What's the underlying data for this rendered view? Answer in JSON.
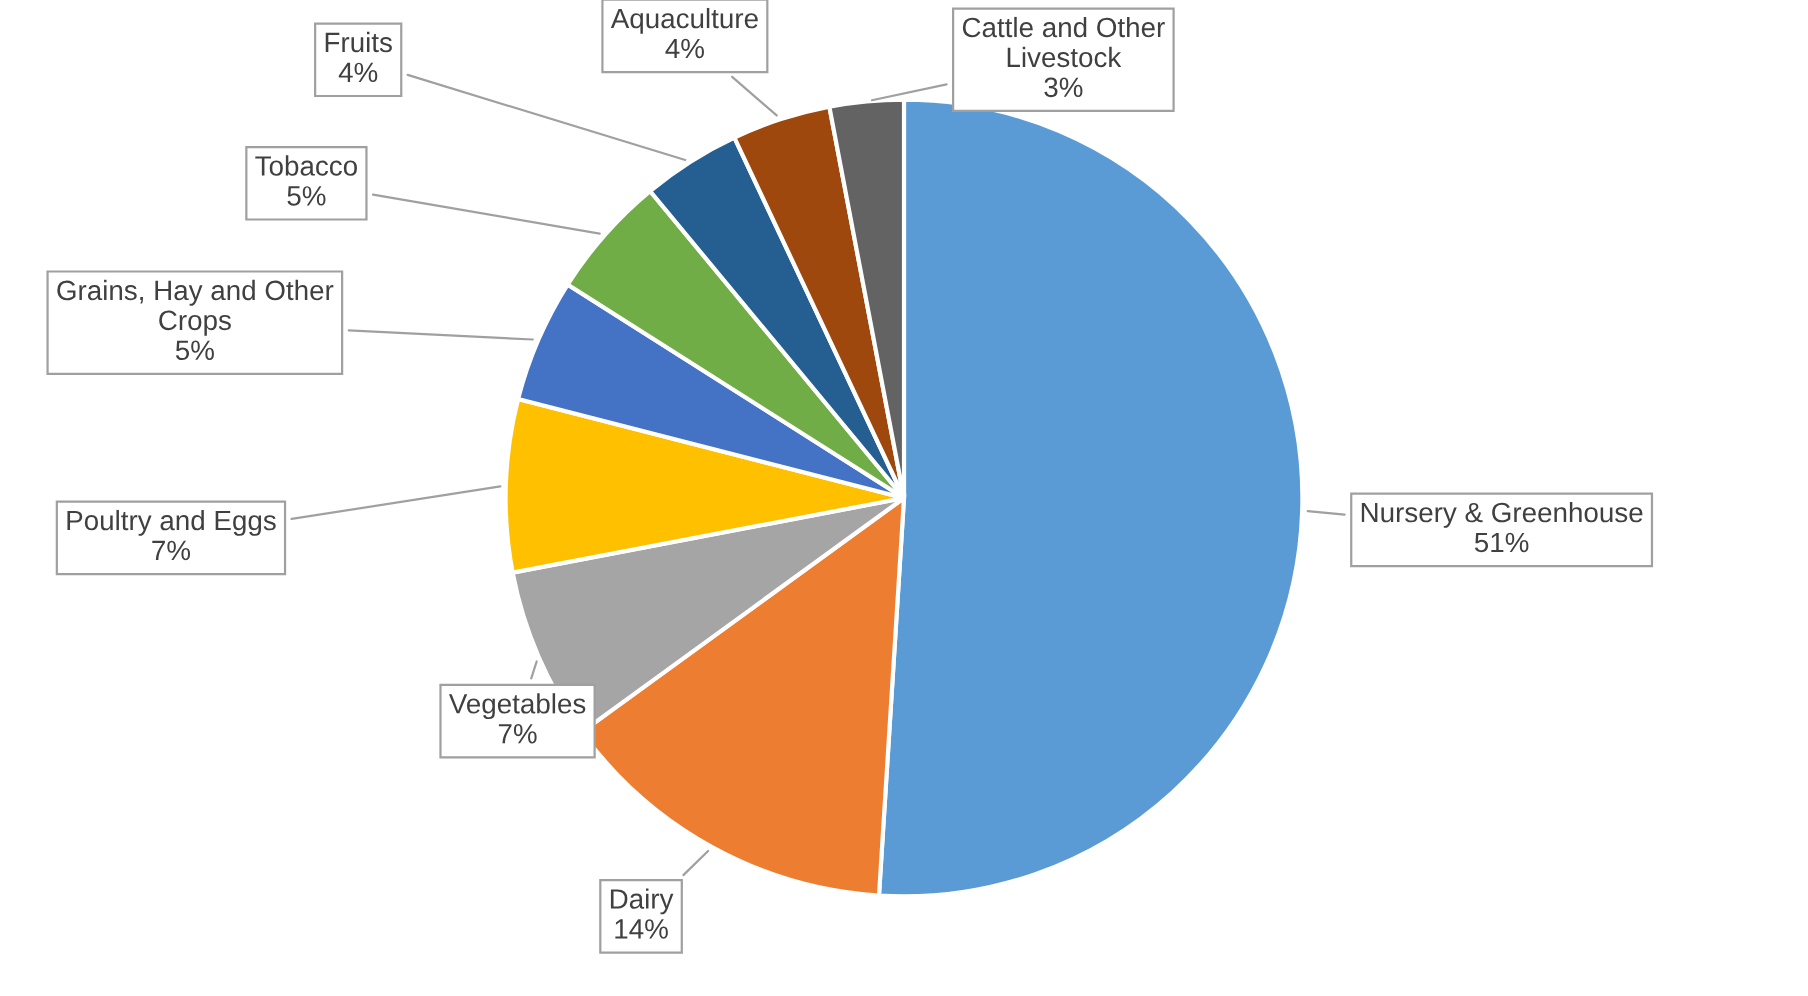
{
  "chart_data": {
    "type": "pie",
    "categories": [
      "Nursery & Greenhouse",
      "Dairy",
      "Vegetables",
      "Poultry and Eggs",
      "Grains, Hay and Other Crops",
      "Tobacco",
      "Fruits",
      "Aquaculture",
      "Cattle and Other Livestock"
    ],
    "values": [
      51,
      14,
      7,
      7,
      5,
      5,
      4,
      4,
      3
    ],
    "value_labels": [
      "51%",
      "14%",
      "7%",
      "7%",
      "5%",
      "5%",
      "4%",
      "4%",
      "3%"
    ],
    "colors": [
      "#5b9bd5",
      "#ed7d31",
      "#a5a5a5",
      "#ffc000",
      "#4472c4",
      "#70ad47",
      "#255e91",
      "#9e480e",
      "#636363"
    ],
    "legend": false
  }
}
